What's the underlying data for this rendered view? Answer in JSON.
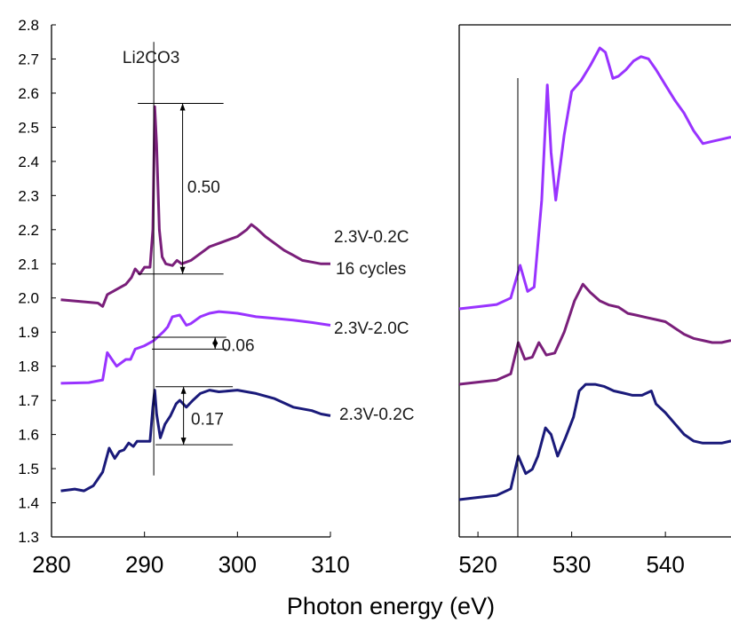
{
  "chart_data": [
    {
      "type": "line",
      "panel": "C K-edge (left)",
      "xlim": [
        280,
        310
      ],
      "ylim": [
        1.3,
        2.8
      ],
      "x_ticks": [
        "280",
        "290",
        "300",
        "310"
      ],
      "y_ticks": [
        "1.3",
        "1.4",
        "1.5",
        "1.6",
        "1.7",
        "1.8",
        "1.9",
        "2.0",
        "2.1",
        "2.2",
        "2.3",
        "2.4",
        "2.5",
        "2.6",
        "2.7",
        "2.8"
      ],
      "grid": false,
      "annotations": {
        "peak_label": "Li2CO3",
        "peak_position": 291,
        "diff_a": "0.50",
        "diff_b": "0.06",
        "diff_c": "0.17"
      },
      "series": [
        {
          "name": "2.3V-0.2C 16 cycles",
          "color": "#7a1f7a",
          "points": [
            [
              281,
              1.995
            ],
            [
              283,
              1.99
            ],
            [
              285,
              1.985
            ],
            [
              285.5,
              1.975
            ],
            [
              286,
              2.01
            ],
            [
              287,
              2.025
            ],
            [
              288,
              2.04
            ],
            [
              288.6,
              2.06
            ],
            [
              289,
              2.085
            ],
            [
              289.5,
              2.07
            ],
            [
              290,
              2.09
            ],
            [
              290.6,
              2.09
            ],
            [
              290.9,
              2.2
            ],
            [
              291.1,
              2.56
            ],
            [
              291.3,
              2.45
            ],
            [
              291.6,
              2.2
            ],
            [
              291.9,
              2.12
            ],
            [
              292.3,
              2.1
            ],
            [
              293,
              2.095
            ],
            [
              293.5,
              2.11
            ],
            [
              294,
              2.1
            ],
            [
              295,
              2.11
            ],
            [
              296,
              2.13
            ],
            [
              297,
              2.15
            ],
            [
              298,
              2.16
            ],
            [
              299,
              2.17
            ],
            [
              300,
              2.18
            ],
            [
              301,
              2.2
            ],
            [
              301.5,
              2.215
            ],
            [
              302,
              2.205
            ],
            [
              303,
              2.18
            ],
            [
              304,
              2.16
            ],
            [
              305,
              2.14
            ],
            [
              306,
              2.125
            ],
            [
              307,
              2.11
            ],
            [
              308,
              2.105
            ],
            [
              309,
              2.1
            ],
            [
              310,
              2.1
            ]
          ]
        },
        {
          "name": "2.3V-2.0C",
          "color": "#9933ff",
          "points": [
            [
              281,
              1.75
            ],
            [
              284,
              1.752
            ],
            [
              285.5,
              1.76
            ],
            [
              286,
              1.84
            ],
            [
              286.5,
              1.82
            ],
            [
              287,
              1.8
            ],
            [
              288,
              1.82
            ],
            [
              288.5,
              1.82
            ],
            [
              289,
              1.85
            ],
            [
              290,
              1.86
            ],
            [
              291,
              1.875
            ],
            [
              292,
              1.9
            ],
            [
              292.5,
              1.915
            ],
            [
              293,
              1.945
            ],
            [
              293.8,
              1.95
            ],
            [
              294.5,
              1.92
            ],
            [
              295,
              1.925
            ],
            [
              296,
              1.945
            ],
            [
              297,
              1.955
            ],
            [
              298,
              1.96
            ],
            [
              300,
              1.955
            ],
            [
              302,
              1.945
            ],
            [
              304,
              1.94
            ],
            [
              306,
              1.935
            ],
            [
              308,
              1.928
            ],
            [
              310,
              1.92
            ]
          ]
        },
        {
          "name": "2.3V-0.2C",
          "color": "#1a1a7a",
          "points": [
            [
              281,
              1.435
            ],
            [
              282.5,
              1.44
            ],
            [
              283.5,
              1.435
            ],
            [
              284.5,
              1.45
            ],
            [
              285.5,
              1.49
            ],
            [
              286.2,
              1.56
            ],
            [
              286.8,
              1.53
            ],
            [
              287.3,
              1.55
            ],
            [
              287.8,
              1.555
            ],
            [
              288.3,
              1.575
            ],
            [
              288.8,
              1.565
            ],
            [
              289.2,
              1.58
            ],
            [
              289.8,
              1.58
            ],
            [
              290.6,
              1.58
            ],
            [
              290.9,
              1.68
            ],
            [
              291.1,
              1.73
            ],
            [
              291.3,
              1.66
            ],
            [
              291.7,
              1.59
            ],
            [
              292.2,
              1.63
            ],
            [
              292.8,
              1.655
            ],
            [
              293.4,
              1.69
            ],
            [
              293.8,
              1.7
            ],
            [
              294.5,
              1.68
            ],
            [
              295.2,
              1.7
            ],
            [
              296,
              1.72
            ],
            [
              297,
              1.73
            ],
            [
              298,
              1.725
            ],
            [
              300,
              1.73
            ],
            [
              302,
              1.72
            ],
            [
              304,
              1.705
            ],
            [
              306,
              1.68
            ],
            [
              308,
              1.67
            ],
            [
              309,
              1.66
            ],
            [
              310,
              1.655
            ]
          ]
        }
      ]
    },
    {
      "type": "line",
      "panel": "O K-edge (right)",
      "xlim": [
        518,
        547
      ],
      "x_ticks": [
        "520",
        "530",
        "540"
      ],
      "xlabel": "Photon energy (eV)",
      "grid": false,
      "series": [
        {
          "color": "#9933ff",
          "points": [
            [
              518,
              0.0
            ],
            [
              520,
              0.01
            ],
            [
              522,
              0.02
            ],
            [
              523.5,
              0.05
            ],
            [
              524.5,
              0.2
            ],
            [
              525.3,
              0.08
            ],
            [
              526,
              0.1
            ],
            [
              526.8,
              0.5
            ],
            [
              527.4,
              1.03
            ],
            [
              527.8,
              0.72
            ],
            [
              528.3,
              0.5
            ],
            [
              529.2,
              0.8
            ],
            [
              530,
              1.0
            ],
            [
              531,
              1.05
            ],
            [
              532,
              1.12
            ],
            [
              533,
              1.2
            ],
            [
              533.6,
              1.18
            ],
            [
              534.4,
              1.06
            ],
            [
              535,
              1.07
            ],
            [
              535.8,
              1.1
            ],
            [
              536.6,
              1.14
            ],
            [
              537.4,
              1.16
            ],
            [
              538.2,
              1.15
            ],
            [
              539,
              1.1
            ],
            [
              540,
              1.03
            ],
            [
              541,
              0.96
            ],
            [
              542,
              0.9
            ],
            [
              543,
              0.82
            ],
            [
              544,
              0.76
            ],
            [
              545,
              0.77
            ],
            [
              546,
              0.78
            ],
            [
              547,
              0.79
            ]
          ]
        },
        {
          "color": "#7a1f7a",
          "points": [
            [
              518,
              0.0
            ],
            [
              520,
              0.01
            ],
            [
              522,
              0.02
            ],
            [
              523.5,
              0.05
            ],
            [
              524.3,
              0.2
            ],
            [
              525,
              0.12
            ],
            [
              525.8,
              0.13
            ],
            [
              526.5,
              0.2
            ],
            [
              527.3,
              0.14
            ],
            [
              528.2,
              0.15
            ],
            [
              529.2,
              0.25
            ],
            [
              530.3,
              0.4
            ],
            [
              531.2,
              0.48
            ],
            [
              532,
              0.44
            ],
            [
              533,
              0.4
            ],
            [
              534,
              0.38
            ],
            [
              535,
              0.37
            ],
            [
              536,
              0.34
            ],
            [
              537,
              0.33
            ],
            [
              538,
              0.32
            ],
            [
              539,
              0.31
            ],
            [
              540,
              0.3
            ],
            [
              541,
              0.27
            ],
            [
              542,
              0.24
            ],
            [
              543,
              0.22
            ],
            [
              544,
              0.21
            ],
            [
              545,
              0.2
            ],
            [
              546,
              0.2
            ],
            [
              547,
              0.21
            ]
          ]
        },
        {
          "color": "#1a1a7a",
          "points": [
            [
              518,
              0.0
            ],
            [
              520,
              0.01
            ],
            [
              522,
              0.02
            ],
            [
              523.5,
              0.05
            ],
            [
              524.3,
              0.2
            ],
            [
              525.1,
              0.12
            ],
            [
              525.8,
              0.14
            ],
            [
              526.4,
              0.2
            ],
            [
              527.2,
              0.33
            ],
            [
              527.8,
              0.3
            ],
            [
              528.5,
              0.2
            ],
            [
              529.3,
              0.28
            ],
            [
              530.2,
              0.38
            ],
            [
              530.8,
              0.5
            ],
            [
              531.5,
              0.53
            ],
            [
              532.5,
              0.53
            ],
            [
              533.5,
              0.52
            ],
            [
              534.5,
              0.5
            ],
            [
              535.5,
              0.49
            ],
            [
              536.5,
              0.48
            ],
            [
              537.5,
              0.48
            ],
            [
              538.5,
              0.5
            ],
            [
              539,
              0.44
            ],
            [
              540,
              0.4
            ],
            [
              541,
              0.35
            ],
            [
              542,
              0.3
            ],
            [
              543,
              0.27
            ],
            [
              544,
              0.26
            ],
            [
              545,
              0.26
            ],
            [
              546,
              0.26
            ],
            [
              547,
              0.27
            ]
          ]
        }
      ]
    }
  ]
}
